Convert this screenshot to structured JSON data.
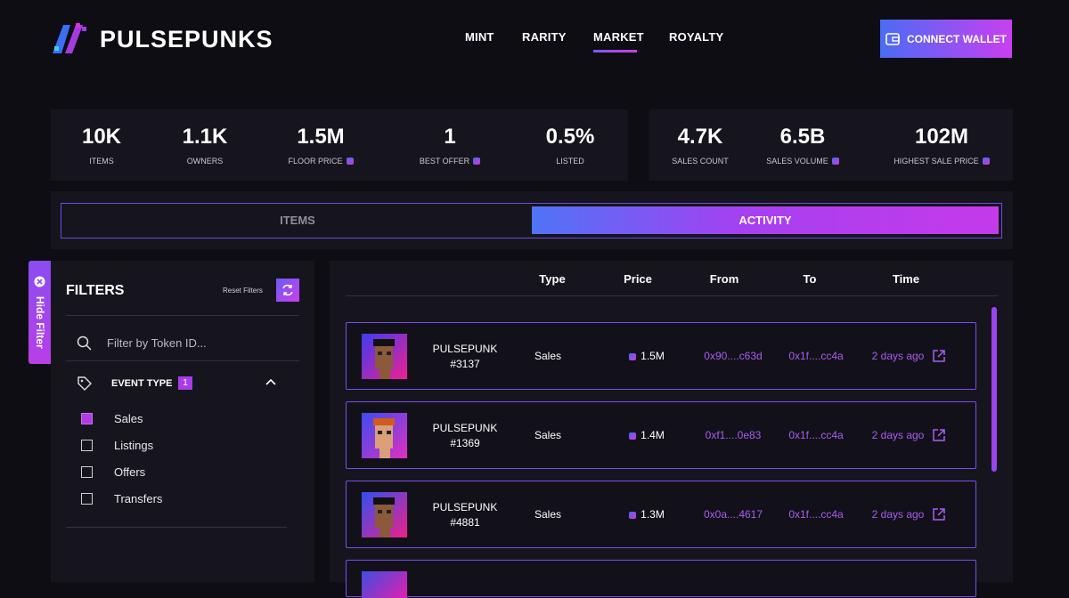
{
  "header": {
    "brand": "PULSEPUNKS",
    "nav": [
      "MINT",
      "RARITY",
      "MARKET",
      "ROYALTY"
    ],
    "connect_wallet": "CONNECT WALLET"
  },
  "stats": [
    {
      "value": "10K",
      "label": "ITEMS"
    },
    {
      "value": "1.1K",
      "label": "OWNERS"
    },
    {
      "value": "1.5M",
      "label": "FLOOR PRICE"
    },
    {
      "value": "1",
      "label": "BEST OFFER"
    },
    {
      "value": "0.5%",
      "label": "LISTED"
    },
    {
      "value": "4.7K",
      "label": "SALES COUNT"
    },
    {
      "value": "6.5B",
      "label": "SALES VOLUME"
    },
    {
      "value": "102M",
      "label": "HIGHEST SALE PRICE"
    }
  ],
  "tabs": [
    "ITEMS",
    "ACTIVITY"
  ],
  "filters": {
    "hide_filter": "Hide Filter",
    "title": "FILTERS",
    "reset": "Reset Filters",
    "search_placeholder": "Filter by Token ID...",
    "event_type": "EVENT TYPE",
    "event_count": 1,
    "options": [
      "Sales",
      "Listings",
      "Offers",
      "Transfers"
    ]
  },
  "table": {
    "columns": [
      "Type",
      "Price",
      "From",
      "To",
      "Time"
    ],
    "rows": [
      {
        "name": "PULSEPUNK",
        "id": "#3137",
        "type": "Sales",
        "price": "1.5M",
        "from": "0x90....c63d",
        "to": "0x1f....cc4a",
        "time": "2 days ago"
      },
      {
        "name": "PULSEPUNK",
        "id": "#1369",
        "type": "Sales",
        "price": "1.4M",
        "from": "0xf1....0e83",
        "to": "0x1f....cc4a",
        "time": "2 days ago"
      },
      {
        "name": "PULSEPUNK",
        "id": "#4881",
        "type": "Sales",
        "price": "1.3M",
        "from": "0x0a....4617",
        "to": "0x1f....cc4a",
        "time": "2 days ago"
      }
    ]
  }
}
